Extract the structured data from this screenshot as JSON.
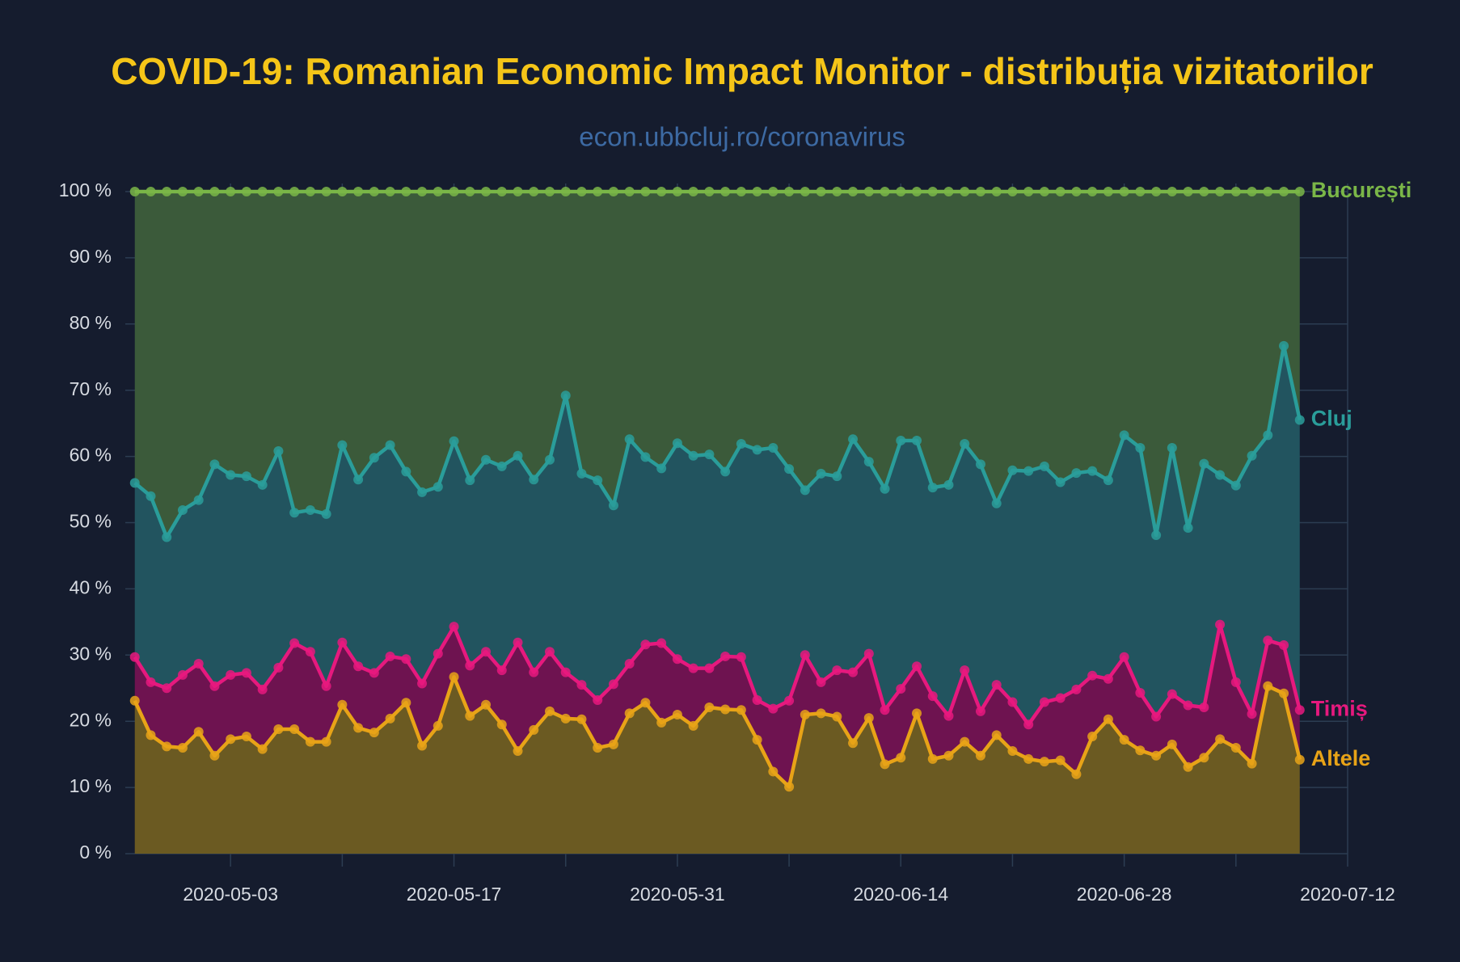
{
  "chart_data": {
    "type": "stacked_area",
    "title": "COVID-19: Romanian Economic Impact Monitor - distribuția vizitatorilor",
    "subtitle": "econ.ubbcluj.ro/coronavirus",
    "x": [
      "2020-04-27",
      "2020-04-28",
      "2020-04-29",
      "2020-04-30",
      "2020-05-01",
      "2020-05-02",
      "2020-05-03",
      "2020-05-04",
      "2020-05-05",
      "2020-05-06",
      "2020-05-07",
      "2020-05-08",
      "2020-05-09",
      "2020-05-10",
      "2020-05-11",
      "2020-05-12",
      "2020-05-13",
      "2020-05-14",
      "2020-05-15",
      "2020-05-16",
      "2020-05-17",
      "2020-05-18",
      "2020-05-19",
      "2020-05-20",
      "2020-05-21",
      "2020-05-22",
      "2020-05-23",
      "2020-05-24",
      "2020-05-25",
      "2020-05-26",
      "2020-05-27",
      "2020-05-28",
      "2020-05-29",
      "2020-05-30",
      "2020-05-31",
      "2020-06-01",
      "2020-06-02",
      "2020-06-03",
      "2020-06-04",
      "2020-06-05",
      "2020-06-06",
      "2020-06-07",
      "2020-06-08",
      "2020-06-09",
      "2020-06-10",
      "2020-06-11",
      "2020-06-12",
      "2020-06-13",
      "2020-06-14",
      "2020-06-15",
      "2020-06-16",
      "2020-06-17",
      "2020-06-18",
      "2020-06-19",
      "2020-06-20",
      "2020-06-21",
      "2020-06-22",
      "2020-06-23",
      "2020-06-24",
      "2020-06-25",
      "2020-06-26",
      "2020-06-27",
      "2020-06-28",
      "2020-06-29",
      "2020-06-30",
      "2020-07-01",
      "2020-07-02",
      "2020-07-03",
      "2020-07-04",
      "2020-07-05",
      "2020-07-06",
      "2020-07-07",
      "2020-07-08",
      "2020-07-09"
    ],
    "series": [
      {
        "name": "Altele",
        "color": "#e8a317",
        "fill": "#6b5a22",
        "values": [
          23.1,
          17.9,
          16.2,
          16.0,
          18.4,
          14.8,
          17.3,
          17.7,
          15.8,
          18.8,
          18.8,
          16.9,
          16.9,
          22.5,
          19.0,
          18.3,
          20.4,
          22.8,
          16.3,
          19.3,
          26.7,
          20.8,
          22.5,
          19.5,
          15.5,
          18.7,
          21.5,
          20.4,
          20.3,
          16.0,
          16.5,
          21.2,
          22.8,
          19.8,
          21.0,
          19.3,
          22.1,
          21.8,
          21.7,
          17.2,
          12.4,
          10.1,
          21.0,
          21.2,
          20.7,
          16.7,
          20.5,
          13.5,
          14.5,
          21.2,
          14.3,
          14.8,
          16.9,
          14.8,
          17.9,
          15.5,
          14.3,
          13.9,
          14.1,
          12.0,
          17.7,
          20.3,
          17.2,
          15.6,
          14.8,
          16.5,
          13.1,
          14.5,
          17.3,
          16.0,
          13.6,
          25.3,
          24.2,
          14.2
        ]
      },
      {
        "name": "Timiș",
        "color": "#e6197e",
        "fill": "#6e1350",
        "values": [
          6.6,
          8.0,
          8.8,
          11.0,
          10.3,
          10.5,
          9.7,
          9.6,
          9.0,
          9.3,
          13.0,
          13.6,
          8.4,
          9.4,
          9.3,
          9.0,
          9.4,
          6.6,
          9.4,
          10.9,
          7.6,
          7.6,
          8.0,
          8.2,
          16.4,
          8.7,
          9.0,
          7.0,
          5.2,
          7.2,
          9.1,
          7.5,
          8.8,
          12.0,
          8.4,
          8.7,
          5.9,
          8.0,
          8.0,
          6.0,
          9.5,
          13.0,
          9.0,
          4.7,
          7.0,
          10.7,
          9.7,
          8.2,
          10.4,
          7.1,
          9.5,
          6.0,
          10.8,
          6.7,
          7.6,
          7.4,
          5.2,
          9.0,
          9.4,
          12.8,
          9.2,
          6.1,
          12.5,
          8.7,
          5.9,
          7.6,
          9.3,
          7.6,
          17.3,
          9.9,
          7.5,
          6.9,
          7.3,
          7.5
        ]
      },
      {
        "name": "Cluj",
        "color": "#2a9d9a",
        "fill": "#22545f",
        "values": [
          26.3,
          28.1,
          22.8,
          24.9,
          24.7,
          33.5,
          30.2,
          29.7,
          30.9,
          32.7,
          19.7,
          21.4,
          26.0,
          29.8,
          28.2,
          32.5,
          31.9,
          28.3,
          28.9,
          25.2,
          28.0,
          28.0,
          29.0,
          30.8,
          28.2,
          29.1,
          29.0,
          41.8,
          31.9,
          33.2,
          27.0,
          33.9,
          28.3,
          26.4,
          32.6,
          32.1,
          32.3,
          27.9,
          32.2,
          37.8,
          39.4,
          35.0,
          24.9,
          31.5,
          29.3,
          35.2,
          29.0,
          33.4,
          37.5,
          34.1,
          31.5,
          34.9,
          34.2,
          37.3,
          27.4,
          35.0,
          38.3,
          35.6,
          32.6,
          32.7,
          30.9,
          30.0,
          33.5,
          37.0,
          27.4,
          37.2,
          26.8,
          36.8,
          22.6,
          29.7,
          39.0,
          31.0,
          45.2,
          43.8
        ]
      },
      {
        "name": "București",
        "color": "#7ab648",
        "fill": "#3b5a3a",
        "values": [
          44.0,
          46.0,
          52.2,
          48.1,
          46.6,
          41.2,
          42.8,
          43.0,
          44.3,
          39.2,
          48.5,
          48.1,
          48.7,
          38.3,
          43.5,
          40.2,
          38.3,
          42.3,
          45.4,
          44.6,
          37.7,
          43.6,
          40.5,
          41.5,
          39.9,
          43.5,
          40.5,
          30.8,
          42.6,
          43.6,
          47.4,
          37.4,
          40.1,
          41.8,
          38.0,
          39.9,
          39.7,
          42.3,
          38.1,
          39.0,
          38.7,
          41.9,
          45.1,
          42.6,
          43.0,
          37.4,
          40.8,
          44.9,
          37.6,
          37.6,
          44.7,
          44.3,
          38.1,
          41.2,
          47.1,
          42.1,
          42.2,
          41.5,
          43.9,
          42.5,
          42.2,
          43.6,
          36.8,
          38.7,
          51.9,
          38.7,
          50.8,
          41.1,
          42.8,
          44.4,
          39.9,
          36.8,
          23.3,
          34.5
        ]
      }
    ],
    "xlim": [
      "2020-04-26",
      "2020-07-12"
    ],
    "xticks": [
      "2020-05-03",
      "2020-05-17",
      "2020-05-31",
      "2020-06-14",
      "2020-06-28",
      "2020-07-12"
    ],
    "xminorticks": [
      "2020-05-10",
      "2020-05-24",
      "2020-06-07",
      "2020-06-21",
      "2020-07-05"
    ],
    "ylim": [
      0,
      100
    ],
    "yticks": [
      {
        "value": 0,
        "label": "0 %"
      },
      {
        "value": 10,
        "label": "10 %"
      },
      {
        "value": 20,
        "label": "20 %"
      },
      {
        "value": 30,
        "label": "30 %"
      },
      {
        "value": 40,
        "label": "40 %"
      },
      {
        "value": 50,
        "label": "50 %"
      },
      {
        "value": 60,
        "label": "60 %"
      },
      {
        "value": 70,
        "label": "70 %"
      },
      {
        "value": 80,
        "label": "80 %"
      },
      {
        "value": 90,
        "label": "90 %"
      },
      {
        "value": 100,
        "label": "100 %"
      }
    ],
    "grid": true,
    "legend": "right-end"
  }
}
